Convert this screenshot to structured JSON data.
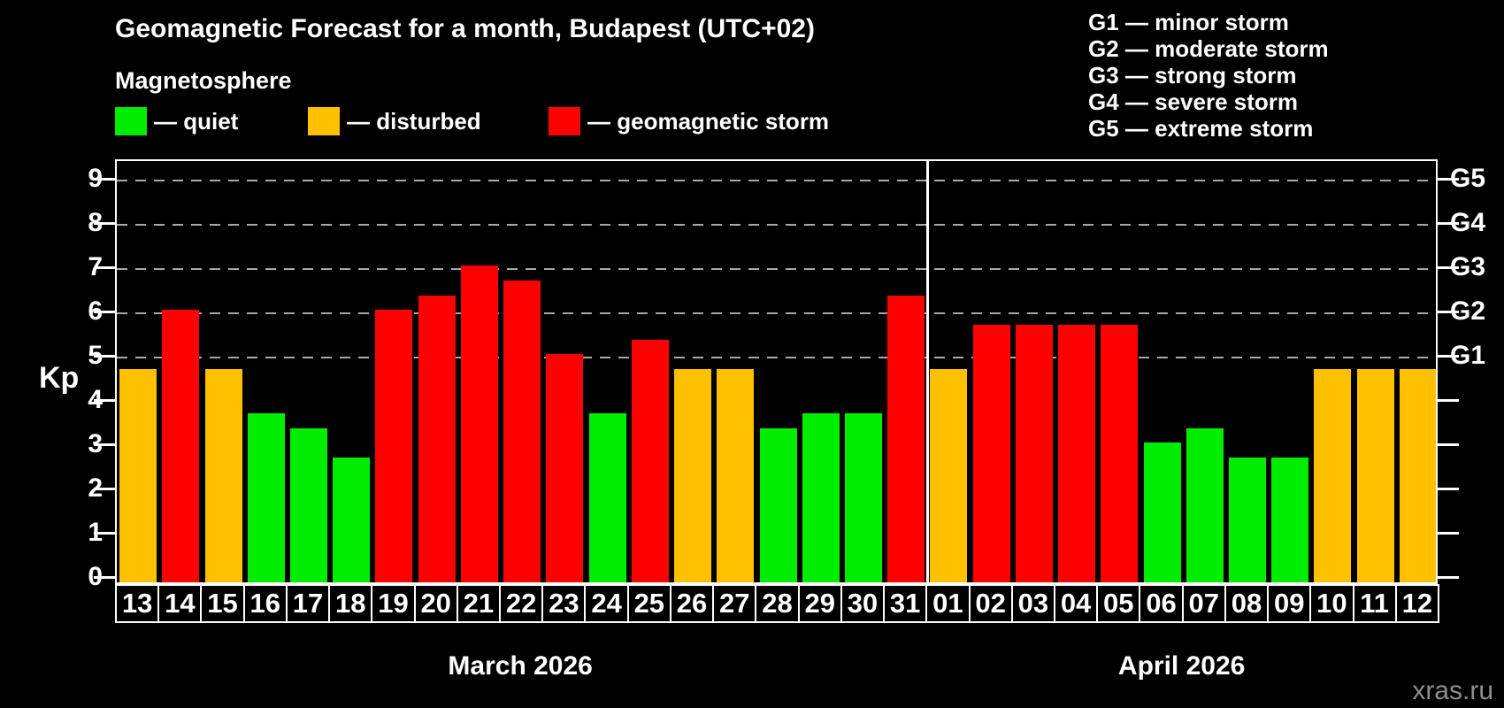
{
  "header": {
    "title": "Geomagnetic Forecast for a month, Budapest (UTC+02)",
    "subtitle": "Magnetosphere"
  },
  "legend": [
    {
      "label": "— quiet",
      "level": "quiet",
      "x": 130
    },
    {
      "label": "— disturbed",
      "level": "disturbed",
      "x": 348
    },
    {
      "label": "— geomagnetic storm",
      "level": "storm",
      "x": 620
    }
  ],
  "g_legend": [
    "G1 — minor storm",
    "G2 — moderate storm",
    "G3 — strong storm",
    "G4 — severe storm",
    "G5 — extreme storm"
  ],
  "colors": {
    "quiet": "#00ed00",
    "disturbed": "#ffc000",
    "storm": "#ff0000",
    "background": "#000000",
    "grid": "#a8a8a8",
    "axis": "#ffffff",
    "watermark": "#8e8e8e"
  },
  "chart_data": {
    "type": "bar",
    "title": "Geomagnetic Forecast for a month, Budapest (UTC+02)",
    "subtitle": "Magnetosphere",
    "ylabel": "Kp",
    "ylim": [
      0,
      9.44
    ],
    "yticks": [
      0,
      1,
      2,
      3,
      4,
      5,
      6,
      7,
      8,
      9
    ],
    "grid": "dashed horizontal lines at Kp 5,6,7,8,9 only",
    "legend_position": "top",
    "right_axis_labels": [
      {
        "kp": 5,
        "label": "G1"
      },
      {
        "kp": 6,
        "label": "G2"
      },
      {
        "kp": 7,
        "label": "G3"
      },
      {
        "kp": 8,
        "label": "G4"
      },
      {
        "kp": 9,
        "label": "G5"
      }
    ],
    "months": [
      {
        "label": "March 2026",
        "days": [
          {
            "day": "13",
            "kp": 4.67,
            "level": "disturbed"
          },
          {
            "day": "14",
            "kp": 6.0,
            "level": "storm"
          },
          {
            "day": "15",
            "kp": 4.67,
            "level": "disturbed"
          },
          {
            "day": "16",
            "kp": 3.67,
            "level": "quiet"
          },
          {
            "day": "17",
            "kp": 3.33,
            "level": "quiet"
          },
          {
            "day": "18",
            "kp": 2.67,
            "level": "quiet"
          },
          {
            "day": "19",
            "kp": 6.0,
            "level": "storm"
          },
          {
            "day": "20",
            "kp": 6.33,
            "level": "storm"
          },
          {
            "day": "21",
            "kp": 7.0,
            "level": "storm"
          },
          {
            "day": "22",
            "kp": 6.67,
            "level": "storm"
          },
          {
            "day": "23",
            "kp": 5.0,
            "level": "storm"
          },
          {
            "day": "24",
            "kp": 3.67,
            "level": "quiet"
          },
          {
            "day": "25",
            "kp": 5.33,
            "level": "storm"
          },
          {
            "day": "26",
            "kp": 4.67,
            "level": "disturbed"
          },
          {
            "day": "27",
            "kp": 4.67,
            "level": "disturbed"
          },
          {
            "day": "28",
            "kp": 3.33,
            "level": "quiet"
          },
          {
            "day": "29",
            "kp": 3.67,
            "level": "quiet"
          },
          {
            "day": "30",
            "kp": 3.67,
            "level": "quiet"
          },
          {
            "day": "31",
            "kp": 6.33,
            "level": "storm"
          }
        ]
      },
      {
        "label": "April 2026",
        "days": [
          {
            "day": "01",
            "kp": 4.67,
            "level": "disturbed"
          },
          {
            "day": "02",
            "kp": 5.67,
            "level": "storm"
          },
          {
            "day": "03",
            "kp": 5.67,
            "level": "storm"
          },
          {
            "day": "04",
            "kp": 5.67,
            "level": "storm"
          },
          {
            "day": "05",
            "kp": 5.67,
            "level": "storm"
          },
          {
            "day": "06",
            "kp": 3.0,
            "level": "quiet"
          },
          {
            "day": "07",
            "kp": 3.33,
            "level": "quiet"
          },
          {
            "day": "08",
            "kp": 2.67,
            "level": "quiet"
          },
          {
            "day": "09",
            "kp": 2.67,
            "level": "quiet"
          },
          {
            "day": "10",
            "kp": 4.67,
            "level": "disturbed"
          },
          {
            "day": "11",
            "kp": 4.67,
            "level": "disturbed"
          },
          {
            "day": "12",
            "kp": 4.67,
            "level": "disturbed"
          }
        ]
      }
    ]
  },
  "watermark": "xras.ru"
}
